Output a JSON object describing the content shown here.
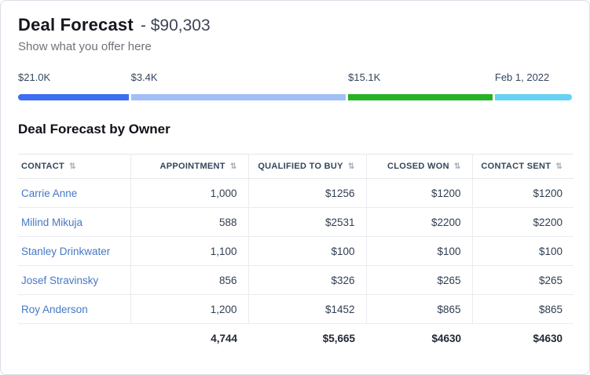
{
  "page": {
    "title": "Deal Forecast",
    "amount": "- $90,303",
    "subtitle": "Show what you offer here"
  },
  "forecast_bar": {
    "segments": [
      {
        "label": "$21.0K",
        "color": "#3d6df2",
        "width_pct": 20.2
      },
      {
        "label": "$3.4K",
        "color": "#a2bff7",
        "width_pct": 39.3
      },
      {
        "label": "$15.1K",
        "color": "#25b225",
        "width_pct": 26.4
      },
      {
        "label": "Feb 1, 2022",
        "color": "#66d2f5",
        "width_pct": 14.1
      }
    ]
  },
  "table_section": {
    "title": "Deal Forecast by Owner",
    "columns": [
      {
        "label": "CONTACT"
      },
      {
        "label": "APPOINTMENT"
      },
      {
        "label": "QUALIFIED TO BUY"
      },
      {
        "label": "CLOSED WON"
      },
      {
        "label": "CONTACT SENT"
      }
    ],
    "rows": [
      {
        "contact": "Carrie Anne",
        "appointment": "1,000",
        "qualified_to_buy": "$1256",
        "closed_won": "$1200",
        "contact_sent": "$1200"
      },
      {
        "contact": "Milind Mikuja",
        "appointment": "588",
        "qualified_to_buy": "$2531",
        "closed_won": "$2200",
        "contact_sent": "$2200"
      },
      {
        "contact": "Stanley Drinkwater",
        "appointment": "1,100",
        "qualified_to_buy": "$100",
        "closed_won": "$100",
        "contact_sent": "$100"
      },
      {
        "contact": "Josef Stravinsky",
        "appointment": "856",
        "qualified_to_buy": "$326",
        "closed_won": "$265",
        "contact_sent": "$265"
      },
      {
        "contact": "Roy Anderson",
        "appointment": "1,200",
        "qualified_to_buy": "$1452",
        "closed_won": "$865",
        "contact_sent": "$865"
      }
    ],
    "totals": {
      "appointment": "4,744",
      "qualified_to_buy": "$5,665",
      "closed_won": "$4630",
      "contact_sent": "$4630"
    }
  },
  "icons": {
    "sort": "⇅"
  }
}
